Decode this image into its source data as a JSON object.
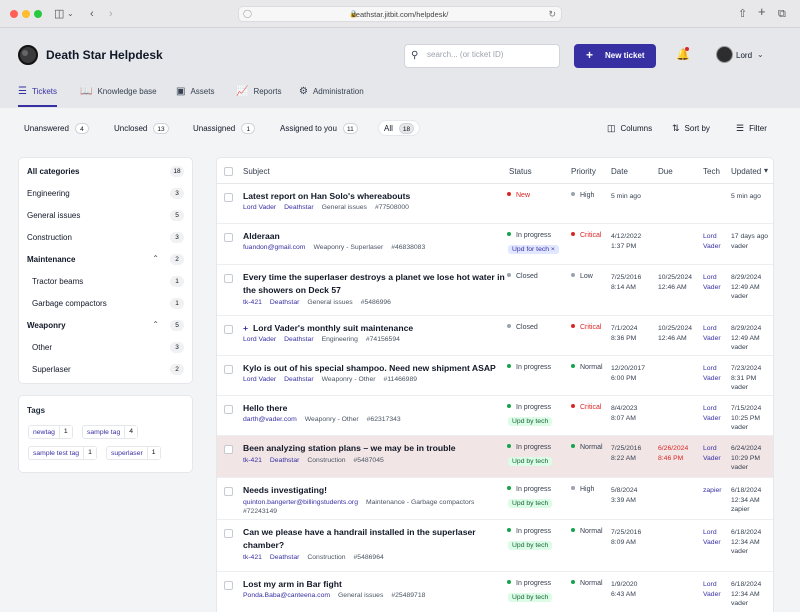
{
  "browser": {
    "url": "deathstar.jitbit.com/helpdesk/"
  },
  "app": {
    "title": "Death Star Helpdesk",
    "search_placeholder": "search... (or ticket ID)",
    "new_ticket_label": "New ticket",
    "user_name": "Lord"
  },
  "nav": [
    {
      "label": "Tickets",
      "icon": "list-icon"
    },
    {
      "label": "Knowledge base",
      "icon": "book-icon"
    },
    {
      "label": "Assets",
      "icon": "inbox-icon"
    },
    {
      "label": "Reports",
      "icon": "chart-icon"
    },
    {
      "label": "Administration",
      "icon": "gear-icon"
    }
  ],
  "filters": [
    {
      "label": "Unanswered",
      "count": "4"
    },
    {
      "label": "Unclosed",
      "count": "13"
    },
    {
      "label": "Unassigned",
      "count": "1"
    },
    {
      "label": "Assigned to you",
      "count": "11"
    },
    {
      "label": "All",
      "count": "18"
    }
  ],
  "tools": {
    "columns": "Columns",
    "sort": "Sort by",
    "filter": "Filter"
  },
  "categories": [
    {
      "label": "All categories",
      "count": "18"
    },
    {
      "label": "Engineering",
      "count": "3"
    },
    {
      "label": "General issues",
      "count": "5"
    },
    {
      "label": "Construction",
      "count": "3"
    },
    {
      "label": "Maintenance",
      "count": "2"
    },
    {
      "label": "Tractor beams",
      "count": "1"
    },
    {
      "label": "Garbage compactors",
      "count": "1"
    },
    {
      "label": "Weaponry",
      "count": "5"
    },
    {
      "label": "Other",
      "count": "3"
    },
    {
      "label": "Superlaser",
      "count": "2"
    }
  ],
  "tags": {
    "title": "Tags",
    "items": [
      {
        "label": "newtag",
        "count": "1"
      },
      {
        "label": "sample tag",
        "count": "4"
      },
      {
        "label": "sample test tag",
        "count": "1"
      },
      {
        "label": "superlaser",
        "count": "1"
      }
    ]
  },
  "table": {
    "headers": {
      "subject": "Subject",
      "status": "Status",
      "priority": "Priority",
      "date": "Date",
      "due": "Due",
      "tech": "Tech",
      "updated": "Updated"
    },
    "rows": [
      {
        "subject": "Latest report on Han Solo's whereabouts",
        "from": "Lord Vader",
        "company": "Deathstar",
        "category": "General issues",
        "id": "#77508000",
        "status": "New",
        "badge": "",
        "priority": "High",
        "date1": "5 min ago",
        "date2": "",
        "due1": "",
        "due2": "",
        "tech1": "",
        "tech2": "",
        "upd1": "5 min ago",
        "upd2": "",
        "upd3": ""
      },
      {
        "subject": "Alderaan",
        "from": "fuandon@gmail.com",
        "company": "",
        "category": "Weaponry - Superlaser",
        "id": "#46838083",
        "status": "In progress",
        "badge": "Upd for tech",
        "priority": "Critical",
        "date1": "4/12/2022",
        "date2": "1:37 PM",
        "due1": "",
        "due2": "",
        "tech1": "Lord",
        "tech2": "Vader",
        "upd1": "17 days ago",
        "upd2": "vader",
        "upd3": ""
      },
      {
        "subject": "Every time the superlaser destroys a planet we lose hot water in the showers on Deck 57",
        "from": "tk-421",
        "company": "Deathstar",
        "category": "General issues",
        "id": "#5486996",
        "status": "Closed",
        "badge": "",
        "priority": "Low",
        "date1": "7/25/2016",
        "date2": "8:14 AM",
        "due1": "10/25/2024",
        "due2": "12:46 AM",
        "tech1": "Lord",
        "tech2": "Vader",
        "upd1": "8/29/2024",
        "upd2": "12:49 AM",
        "upd3": "vader"
      },
      {
        "subject": "Lord Vader's monthly suit maintenance",
        "plus": "+",
        "from": "Lord Vader",
        "company": "Deathstar",
        "category": "Engineering",
        "id": "#74156594",
        "status": "Closed",
        "badge": "",
        "priority": "Critical",
        "date1": "7/1/2024",
        "date2": "8:36 PM",
        "due1": "10/25/2024",
        "due2": "12:46 AM",
        "tech1": "Lord",
        "tech2": "Vader",
        "upd1": "8/29/2024",
        "upd2": "12:49 AM",
        "upd3": "vader"
      },
      {
        "subject": "Kylo is out of his special shampoo. Need new shipment ASAP",
        "from": "Lord Vader",
        "company": "Deathstar",
        "category": "Weaponry - Other",
        "id": "#11466989",
        "status": "In progress",
        "badge": "",
        "priority": "Normal",
        "date1": "12/20/2017",
        "date2": "6:00 PM",
        "due1": "",
        "due2": "",
        "tech1": "Lord",
        "tech2": "Vader",
        "upd1": "7/23/2024",
        "upd2": "8:31 PM",
        "upd3": "vader"
      },
      {
        "subject": "Hello there",
        "from": "darth@vader.com",
        "company": "",
        "category": "Weaponry - Other",
        "id": "#62317343",
        "status": "In progress",
        "badge": "Upd by tech",
        "priority": "Critical",
        "date1": "8/4/2023",
        "date2": "8:07 AM",
        "due1": "",
        "due2": "",
        "tech1": "Lord",
        "tech2": "Vader",
        "upd1": "7/15/2024",
        "upd2": "10:25 PM",
        "upd3": "vader"
      },
      {
        "subject": "Been analyzing station plans – we may be in trouble",
        "from": "tk-421",
        "company": "Deathstar",
        "category": "Construction",
        "id": "#5487045",
        "status": "In progress",
        "badge": "Upd by tech",
        "priority": "Normal",
        "date1": "7/25/2016",
        "date2": "8:22 AM",
        "due1": "6/26/2024",
        "due2": "8:46 PM",
        "tech1": "Lord",
        "tech2": "Vader",
        "upd1": "6/24/2024",
        "upd2": "10:29 PM",
        "upd3": "vader"
      },
      {
        "subject": "Needs investigating!",
        "from": "quinton.bangerter@billingstudents.org",
        "company": "",
        "category": "Maintenance - Garbage compactors",
        "id": "#72243149",
        "status": "In progress",
        "badge": "Upd by tech",
        "priority": "High",
        "date1": "5/8/2024",
        "date2": "3:39 AM",
        "due1": "",
        "due2": "",
        "tech1": "zapier",
        "tech2": "",
        "upd1": "6/18/2024",
        "upd2": "12:34 AM",
        "upd3": "zapier"
      },
      {
        "subject": "Can we please have a handrail installed in the superlaser chamber?",
        "from": "tk-421",
        "company": "Deathstar",
        "category": "Construction",
        "id": "#5486964",
        "status": "In progress",
        "badge": "Upd by tech",
        "priority": "Normal",
        "date1": "7/25/2016",
        "date2": "8:09 AM",
        "due1": "",
        "due2": "",
        "tech1": "Lord",
        "tech2": "Vader",
        "upd1": "6/18/2024",
        "upd2": "12:34 AM",
        "upd3": "vader"
      },
      {
        "subject": "Lost my arm in Bar fight",
        "from": "Ponda.Baba@canteena.com",
        "company": "",
        "category": "General issues",
        "id": "#25489718",
        "status": "In progress",
        "badge": "Upd by tech",
        "priority": "Normal",
        "date1": "1/9/2020",
        "date2": "6:43 AM",
        "due1": "",
        "due2": "",
        "tech1": "Lord",
        "tech2": "Vader",
        "upd1": "6/18/2024",
        "upd2": "12:34 AM",
        "upd3": "vader"
      }
    ]
  },
  "colors": {
    "accent": "#3730a3",
    "status_new": "#dc2626",
    "status_in_progress": "#16a34a",
    "status_closed": "#9ca3af",
    "priority_critical": "#dc2626",
    "priority_high": "#9ca3af",
    "priority_low": "#9ca3af",
    "priority_normal": "#16a34a"
  }
}
